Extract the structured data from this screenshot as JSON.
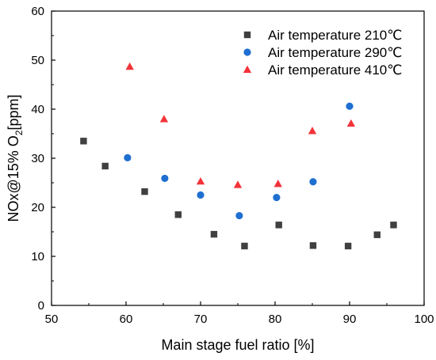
{
  "chart_data": {
    "type": "scatter",
    "xlabel": "Main stage fuel ratio [%]",
    "ylabel": {
      "prefix": "NOx@15% O",
      "subscript": "2",
      "suffix": "[ppm]"
    },
    "xlim": [
      50,
      100
    ],
    "ylim": [
      0,
      60
    ],
    "x_ticks": [
      "50",
      "60",
      "70",
      "80",
      "90",
      "100"
    ],
    "y_ticks": [
      "0",
      "10",
      "20",
      "30",
      "40",
      "50",
      "60"
    ],
    "grid": false,
    "legend_position": "top-right",
    "series": [
      {
        "name": "Air temperature 210℃",
        "marker": "square",
        "color": "#404040",
        "points": [
          [
            54.3,
            33.5
          ],
          [
            57.2,
            28.4
          ],
          [
            62.5,
            23.2
          ],
          [
            67.0,
            18.5
          ],
          [
            71.8,
            14.5
          ],
          [
            75.9,
            12.1
          ],
          [
            80.5,
            16.4
          ],
          [
            85.1,
            12.2
          ],
          [
            89.8,
            12.1
          ],
          [
            93.7,
            14.4
          ],
          [
            95.9,
            16.4
          ]
        ]
      },
      {
        "name": "Air temperature 290℃",
        "marker": "circle",
        "color": "#1f6fd1",
        "points": [
          [
            60.2,
            30.1
          ],
          [
            65.2,
            25.9
          ],
          [
            70.0,
            22.5
          ],
          [
            75.2,
            18.3
          ],
          [
            80.2,
            22.0
          ],
          [
            85.1,
            25.2
          ],
          [
            90.0,
            40.6
          ]
        ]
      },
      {
        "name": "Air temperature 410℃",
        "marker": "triangle",
        "color": "#f2333a",
        "points": [
          [
            60.5,
            48.7
          ],
          [
            65.1,
            38.0
          ],
          [
            70.0,
            25.3
          ],
          [
            75.0,
            24.6
          ],
          [
            80.4,
            24.8
          ],
          [
            85.0,
            35.6
          ],
          [
            90.2,
            37.1
          ]
        ]
      }
    ]
  }
}
